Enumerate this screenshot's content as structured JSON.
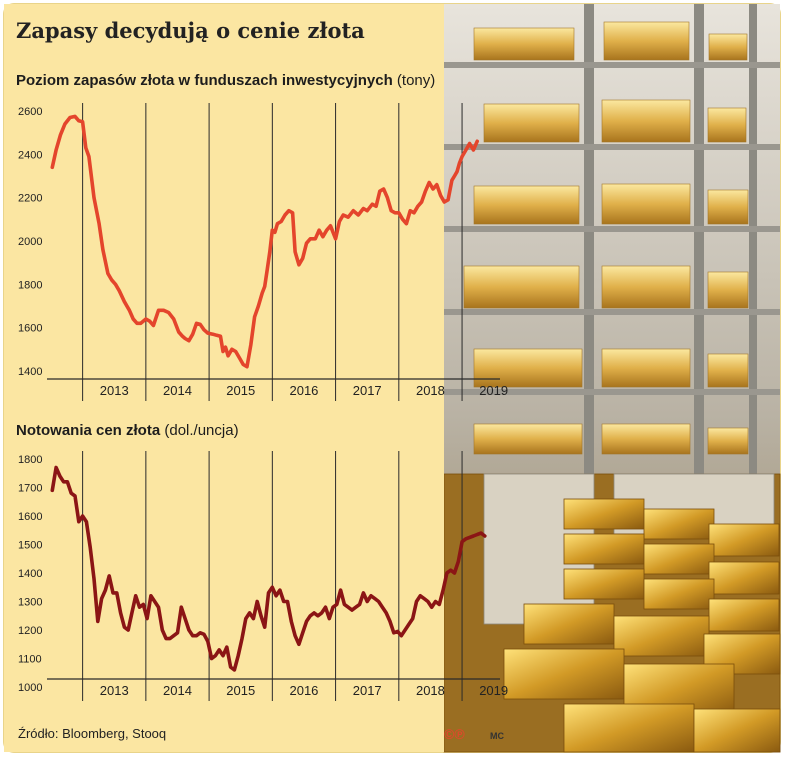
{
  "title": "Zapasy decydują o cenie złota",
  "source": "Źródło: Bloomberg, Stooq",
  "logo": "©℗",
  "credit": "MC",
  "colors": {
    "background": "#fbe6a2",
    "series1": "#e4452c",
    "series2": "#8b1515",
    "axis": "#2a2a2a"
  },
  "chart_data": [
    {
      "type": "line",
      "title": "Poziom zapasów złota w funduszach inwestycyjnych",
      "unit": "(tony)",
      "xlabel": "",
      "ylabel": "",
      "ylim": [
        1400,
        2600
      ],
      "xlim": [
        2012.5,
        2019.6
      ],
      "yticks": [
        1400,
        1600,
        1800,
        2000,
        2200,
        2400,
        2600
      ],
      "xticks": [
        "2013",
        "2014",
        "2015",
        "2016",
        "2017",
        "2018",
        "2019"
      ],
      "grid": false,
      "series": [
        {
          "color": "#e4452c",
          "x": [
            2012.52,
            2012.58,
            2012.65,
            2012.72,
            2012.8,
            2012.88,
            2012.94,
            2013.0,
            2013.05,
            2013.1,
            2013.18,
            2013.26,
            2013.32,
            2013.4,
            2013.46,
            2013.52,
            2013.58,
            2013.66,
            2013.74,
            2013.8,
            2013.86,
            2013.92,
            2014.0,
            2014.06,
            2014.12,
            2014.2,
            2014.28,
            2014.36,
            2014.44,
            2014.52,
            2014.58,
            2014.62,
            2014.68,
            2014.74,
            2014.8,
            2014.86,
            2014.92,
            2014.98,
            2015.06,
            2015.12,
            2015.18,
            2015.22,
            2015.26,
            2015.3,
            2015.36,
            2015.42,
            2015.48,
            2015.54,
            2015.6,
            2015.66,
            2015.72,
            2015.78,
            2015.84,
            2015.88,
            2015.92,
            2015.96,
            2016.0,
            2016.04,
            2016.08,
            2016.14,
            2016.2,
            2016.26,
            2016.32,
            2016.36,
            2016.42,
            2016.48,
            2016.54,
            2016.6,
            2016.68,
            2016.74,
            2016.8,
            2016.86,
            2016.92,
            2017.0,
            2017.06,
            2017.12,
            2017.2,
            2017.28,
            2017.36,
            2017.44,
            2017.5,
            2017.58,
            2017.64,
            2017.7,
            2017.76,
            2017.82,
            2017.88,
            2017.94,
            2018.0,
            2018.06,
            2018.12,
            2018.18,
            2018.24,
            2018.3,
            2018.36,
            2018.42,
            2018.48,
            2018.54,
            2018.6,
            2018.66,
            2018.72,
            2018.78,
            2018.84,
            2018.88,
            2018.92,
            2018.96,
            2019.0,
            2019.06,
            2019.12,
            2019.18,
            2019.24
          ],
          "values": [
            2340,
            2420,
            2490,
            2540,
            2570,
            2575,
            2555,
            2550,
            2430,
            2390,
            2200,
            2080,
            1960,
            1850,
            1820,
            1800,
            1770,
            1720,
            1680,
            1640,
            1620,
            1620,
            1640,
            1630,
            1610,
            1680,
            1680,
            1670,
            1640,
            1580,
            1560,
            1550,
            1540,
            1570,
            1620,
            1615,
            1590,
            1575,
            1570,
            1565,
            1560,
            1490,
            1510,
            1470,
            1500,
            1490,
            1460,
            1430,
            1420,
            1520,
            1650,
            1700,
            1760,
            1790,
            1870,
            1950,
            2050,
            2040,
            2080,
            2090,
            2120,
            2140,
            2130,
            1950,
            1890,
            1920,
            1990,
            2010,
            2010,
            2050,
            2020,
            2050,
            2070,
            2010,
            2090,
            2120,
            2110,
            2140,
            2120,
            2150,
            2140,
            2170,
            2160,
            2230,
            2240,
            2200,
            2140,
            2130,
            2130,
            2100,
            2080,
            2140,
            2130,
            2160,
            2180,
            2230,
            2270,
            2240,
            2260,
            2210,
            2180,
            2190,
            2280,
            2300,
            2320,
            2360,
            2390,
            2420,
            2450,
            2420,
            2460
          ]
        }
      ]
    },
    {
      "type": "line",
      "title": "Notowania cen złota",
      "unit": "(dol./uncja)",
      "xlabel": "",
      "ylabel": "",
      "ylim": [
        1000,
        1800
      ],
      "xlim": [
        2012.5,
        2019.6
      ],
      "yticks": [
        1000,
        1100,
        1200,
        1300,
        1400,
        1500,
        1600,
        1700,
        1800
      ],
      "xticks": [
        "2013",
        "2014",
        "2015",
        "2016",
        "2017",
        "2018",
        "2019"
      ],
      "grid": false,
      "series": [
        {
          "color": "#8b1515",
          "x": [
            2012.52,
            2012.58,
            2012.64,
            2012.7,
            2012.76,
            2012.82,
            2012.88,
            2012.94,
            2013.0,
            2013.06,
            2013.12,
            2013.18,
            2013.24,
            2013.3,
            2013.36,
            2013.42,
            2013.48,
            2013.54,
            2013.6,
            2013.66,
            2013.72,
            2013.78,
            2013.84,
            2013.9,
            2013.96,
            2014.02,
            2014.08,
            2014.14,
            2014.2,
            2014.26,
            2014.32,
            2014.38,
            2014.44,
            2014.5,
            2014.56,
            2014.62,
            2014.68,
            2014.74,
            2014.8,
            2014.86,
            2014.92,
            2014.98,
            2015.04,
            2015.1,
            2015.16,
            2015.22,
            2015.28,
            2015.34,
            2015.4,
            2015.46,
            2015.52,
            2015.58,
            2015.64,
            2015.7,
            2015.76,
            2015.82,
            2015.88,
            2015.94,
            2016.0,
            2016.06,
            2016.12,
            2016.18,
            2016.24,
            2016.3,
            2016.36,
            2016.42,
            2016.48,
            2016.54,
            2016.6,
            2016.66,
            2016.72,
            2016.78,
            2016.84,
            2016.9,
            2016.96,
            2017.02,
            2017.08,
            2017.14,
            2017.2,
            2017.26,
            2017.32,
            2017.38,
            2017.44,
            2017.5,
            2017.56,
            2017.62,
            2017.68,
            2017.74,
            2017.8,
            2017.86,
            2017.92,
            2017.98,
            2018.04,
            2018.1,
            2018.16,
            2018.22,
            2018.28,
            2018.34,
            2018.4,
            2018.46,
            2018.52,
            2018.58,
            2018.64,
            2018.7,
            2018.76,
            2018.82,
            2018.88,
            2018.94,
            2019.0,
            2019.06,
            2019.12,
            2019.18,
            2019.24,
            2019.3,
            2019.36
          ],
          "values": [
            1690,
            1770,
            1740,
            1720,
            1720,
            1680,
            1670,
            1580,
            1600,
            1580,
            1490,
            1380,
            1230,
            1310,
            1340,
            1390,
            1330,
            1330,
            1260,
            1210,
            1200,
            1260,
            1320,
            1280,
            1290,
            1240,
            1320,
            1300,
            1280,
            1200,
            1170,
            1170,
            1180,
            1190,
            1280,
            1240,
            1200,
            1180,
            1180,
            1190,
            1185,
            1160,
            1100,
            1110,
            1130,
            1110,
            1140,
            1070,
            1060,
            1110,
            1170,
            1240,
            1260,
            1240,
            1300,
            1250,
            1210,
            1330,
            1350,
            1320,
            1340,
            1300,
            1300,
            1230,
            1180,
            1150,
            1190,
            1230,
            1250,
            1260,
            1250,
            1260,
            1280,
            1240,
            1280,
            1290,
            1340,
            1290,
            1280,
            1270,
            1280,
            1290,
            1330,
            1300,
            1320,
            1310,
            1300,
            1280,
            1260,
            1230,
            1190,
            1195,
            1180,
            1200,
            1220,
            1240,
            1300,
            1320,
            1310,
            1300,
            1280,
            1300,
            1290,
            1340,
            1400,
            1410,
            1400,
            1440,
            1510,
            1520,
            1525,
            1530,
            1535,
            1540,
            1530
          ]
        }
      ]
    }
  ]
}
